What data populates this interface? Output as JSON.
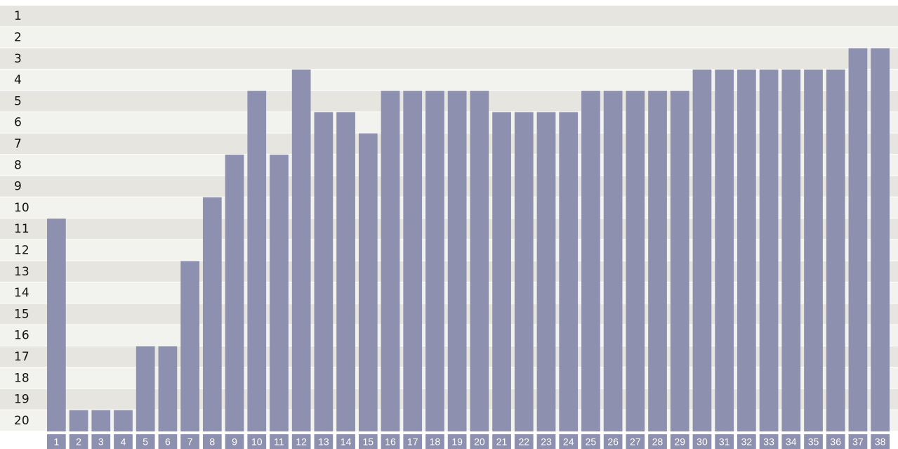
{
  "chart_data": {
    "type": "bar",
    "categories": [
      1,
      2,
      3,
      4,
      5,
      6,
      7,
      8,
      9,
      10,
      11,
      12,
      13,
      14,
      15,
      16,
      17,
      18,
      19,
      20,
      21,
      22,
      23,
      24,
      25,
      26,
      27,
      28,
      29,
      30,
      31,
      32,
      33,
      34,
      35,
      36,
      37,
      38
    ],
    "values": [
      11,
      20,
      20,
      20,
      17,
      17,
      13,
      10,
      8,
      5,
      8,
      4,
      6,
      6,
      7,
      5,
      5,
      5,
      5,
      5,
      6,
      6,
      6,
      6,
      5,
      5,
      5,
      5,
      5,
      4,
      4,
      4,
      4,
      4,
      4,
      4,
      3,
      3
    ],
    "color": "#8d90ae",
    "ylim": [
      20.5,
      0.5
    ],
    "yticks": [
      1,
      2,
      3,
      4,
      5,
      6,
      7,
      8,
      9,
      10,
      11,
      12,
      13,
      14,
      15,
      16,
      17,
      18,
      19,
      20
    ],
    "grid": true
  }
}
